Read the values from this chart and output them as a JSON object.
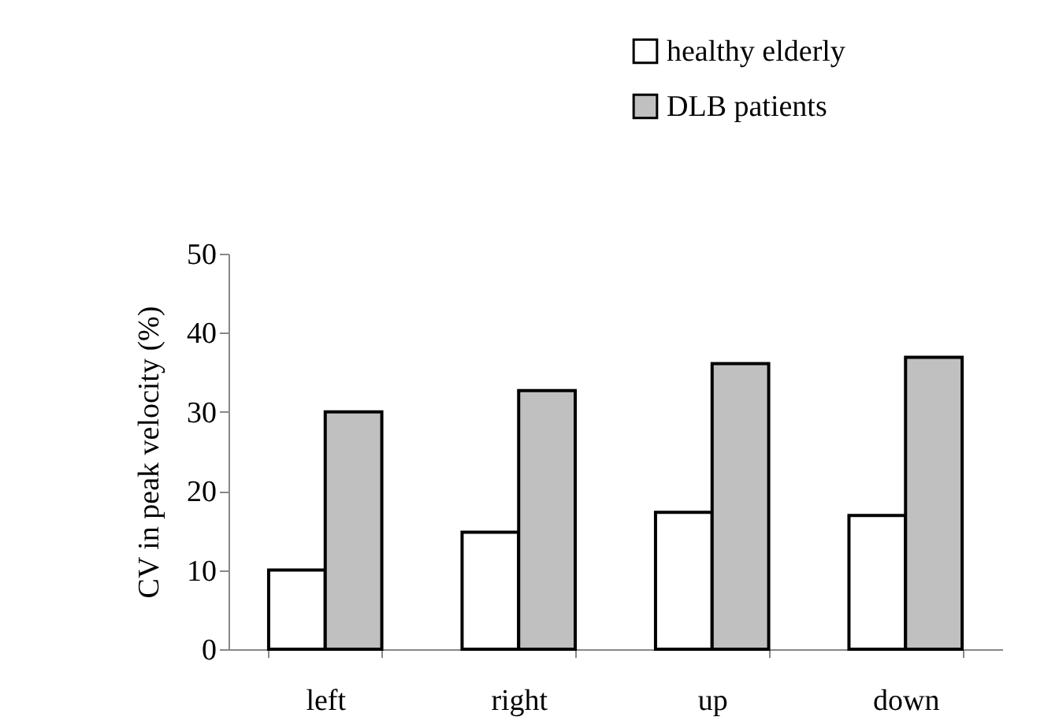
{
  "chart_data": {
    "type": "bar",
    "ylabel": "CV in peak velocity (%)",
    "categories": [
      "left",
      "right",
      "up",
      "down"
    ],
    "series": [
      {
        "name": "healthy elderly",
        "color": "#ffffff",
        "values": [
          10,
          14.8,
          17.3,
          16.9
        ]
      },
      {
        "name": "DLB patients",
        "color": "#c0c0c0",
        "values": [
          30,
          32.7,
          36.1,
          36.9
        ]
      }
    ],
    "ylim": [
      0,
      50
    ],
    "yticks": [
      0,
      10,
      20,
      30,
      40,
      50
    ],
    "grid": false,
    "legend": "top right"
  }
}
